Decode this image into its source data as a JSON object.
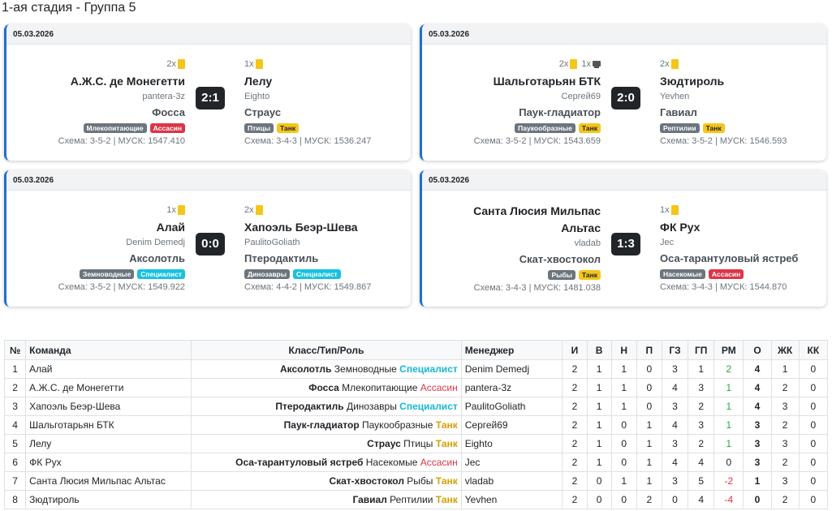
{
  "page_title": "1-ая стадия - Группа 5",
  "matches": [
    {
      "date": "05.03.2026",
      "score": "2:1",
      "home": {
        "cards": "2x",
        "sub": "",
        "team": "А.Ж.С. де Монегетти",
        "team2": "",
        "manager": "pantera-3z",
        "cls": "Фосса",
        "type": "Млекопитающие",
        "role": "Ассасин",
        "role_style": "red",
        "scheme": "Схема: 3-5-2 | МУСК: 1547.410"
      },
      "away": {
        "cards": "1x",
        "sub": "",
        "team": "Лелу",
        "team2": "",
        "manager": "Eighto",
        "cls": "Страус",
        "type": "Птицы",
        "role": "Танк",
        "role_style": "yellow",
        "scheme": "Схема: 3-4-3 | МУСК: 1536.247"
      }
    },
    {
      "date": "05.03.2026",
      "score": "2:0",
      "home": {
        "cards": "2x",
        "sub": "1x",
        "team": "Шальготарьян БТК",
        "team2": "",
        "manager": "Сергей69",
        "cls": "Паук-гладиатор",
        "type": "Паукообразные",
        "role": "Танк",
        "role_style": "yellow",
        "scheme": "Схема: 3-5-2 | МУСК: 1543.659"
      },
      "away": {
        "cards": "2x",
        "sub": "",
        "team": "Зюдтироль",
        "team2": "",
        "manager": "Yevhen",
        "cls": "Гавиал",
        "type": "Рептилии",
        "role": "Танк",
        "role_style": "yellow",
        "scheme": "Схема: 3-5-2 | МУСК: 1546.593"
      }
    },
    {
      "date": "05.03.2026",
      "score": "0:0",
      "home": {
        "cards": "1x",
        "sub": "",
        "team": "Алай",
        "team2": "",
        "manager": "Denim Demedj",
        "cls": "Аксолотль",
        "type": "Земноводные",
        "role": "Специалист",
        "role_style": "cyan",
        "scheme": "Схема: 3-5-2 | МУСК: 1549.922"
      },
      "away": {
        "cards": "2x",
        "sub": "",
        "team": "Хапоэль Беэр-Шева",
        "team2": "",
        "manager": "PaulitoGoliath",
        "cls": "Птеродактиль",
        "type": "Динозавры",
        "role": "Специалист",
        "role_style": "cyan",
        "scheme": "Схема: 4-4-2 | МУСК: 1549.867"
      }
    },
    {
      "date": "05.03.2026",
      "score": "1:3",
      "home": {
        "cards": "",
        "sub": "",
        "team": "Санта Люсия Мильпас",
        "team2": "Альтас",
        "manager": "vladab",
        "cls": "Скат-хвостокол",
        "type": "Рыбы",
        "role": "Танк",
        "role_style": "yellow",
        "scheme": "Схема: 3-4-3 | МУСК: 1481.038"
      },
      "away": {
        "cards": "1x",
        "sub": "",
        "team": "ФК Рух",
        "team2": "",
        "manager": "Jec",
        "cls": "Оса-тарантуловый ястреб",
        "type": "Насекомые",
        "role": "Ассасин",
        "role_style": "red",
        "scheme": "Схема: 3-4-3 | МУСК: 1544.870"
      }
    }
  ],
  "table": {
    "headers": [
      "№",
      "Команда",
      "Класс/Тип/Роль",
      "Менеджер",
      "И",
      "В",
      "Н",
      "П",
      "ГЗ",
      "ГП",
      "РМ",
      "О",
      "ЖК",
      "КК"
    ],
    "rows": [
      {
        "n": "1",
        "team": "Алай",
        "cls": "Аксолотль",
        "type": "Земноводные",
        "role": "Специалист",
        "role_style": "cyan",
        "manager": "Denim Demedj",
        "i": "2",
        "w": "1",
        "d": "1",
        "l": "0",
        "gf": "3",
        "ga": "1",
        "gd": "2",
        "gd_style": "pos",
        "pts": "4",
        "yc": "1",
        "rc": "0"
      },
      {
        "n": "2",
        "team": "А.Ж.С. де Монегетти",
        "cls": "Фосса",
        "type": "Млекопитающие",
        "role": "Ассасин",
        "role_style": "red",
        "manager": "pantera-3z",
        "i": "2",
        "w": "1",
        "d": "1",
        "l": "0",
        "gf": "4",
        "ga": "3",
        "gd": "1",
        "gd_style": "pos",
        "pts": "4",
        "yc": "2",
        "rc": "0"
      },
      {
        "n": "3",
        "team": "Хапоэль Беэр-Шева",
        "cls": "Птеродактиль",
        "type": "Динозавры",
        "role": "Специалист",
        "role_style": "cyan",
        "manager": "PaulitoGoliath",
        "i": "2",
        "w": "1",
        "d": "1",
        "l": "0",
        "gf": "3",
        "ga": "2",
        "gd": "1",
        "gd_style": "pos",
        "pts": "4",
        "yc": "3",
        "rc": "0"
      },
      {
        "n": "4",
        "team": "Шальготарьян БТК",
        "cls": "Паук-гладиатор",
        "type": "Паукообразные",
        "role": "Танк",
        "role_style": "yellow",
        "manager": "Сергей69",
        "i": "2",
        "w": "1",
        "d": "0",
        "l": "1",
        "gf": "4",
        "ga": "3",
        "gd": "1",
        "gd_style": "pos",
        "pts": "3",
        "yc": "2",
        "rc": "0"
      },
      {
        "n": "5",
        "team": "Лелу",
        "cls": "Страус",
        "type": "Птицы",
        "role": "Танк",
        "role_style": "yellow",
        "manager": "Eighto",
        "i": "2",
        "w": "1",
        "d": "0",
        "l": "1",
        "gf": "3",
        "ga": "2",
        "gd": "1",
        "gd_style": "pos",
        "pts": "3",
        "yc": "3",
        "rc": "0"
      },
      {
        "n": "6",
        "team": "ФК Рух",
        "cls": "Оса-тарантуловый ястреб",
        "type": "Насекомые",
        "role": "Ассасин",
        "role_style": "red",
        "manager": "Jec",
        "i": "2",
        "w": "1",
        "d": "0",
        "l": "1",
        "gf": "4",
        "ga": "4",
        "gd": "0",
        "gd_style": "zero",
        "pts": "3",
        "yc": "2",
        "rc": "0"
      },
      {
        "n": "7",
        "team": "Санта Люсия Мильпас Альтас",
        "cls": "Скат-хвостокол",
        "type": "Рыбы",
        "role": "Танк",
        "role_style": "yellow",
        "manager": "vladab",
        "i": "2",
        "w": "0",
        "d": "1",
        "l": "1",
        "gf": "3",
        "ga": "5",
        "gd": "-2",
        "gd_style": "neg",
        "pts": "1",
        "yc": "3",
        "rc": "0"
      },
      {
        "n": "8",
        "team": "Зюдтироль",
        "cls": "Гавиал",
        "type": "Рептилии",
        "role": "Танк",
        "role_style": "yellow",
        "manager": "Yevhen",
        "i": "2",
        "w": "0",
        "d": "0",
        "l": "2",
        "gf": "0",
        "ga": "4",
        "gd": "-4",
        "gd_style": "neg",
        "pts": "0",
        "yc": "2",
        "rc": "0"
      }
    ]
  },
  "colors": {
    "accent": "#1f6fd1",
    "red_badge": "#dc3545",
    "yellow_badge": "#f5c518",
    "cyan_badge": "#17c1e0",
    "score_bg": "#212529"
  }
}
